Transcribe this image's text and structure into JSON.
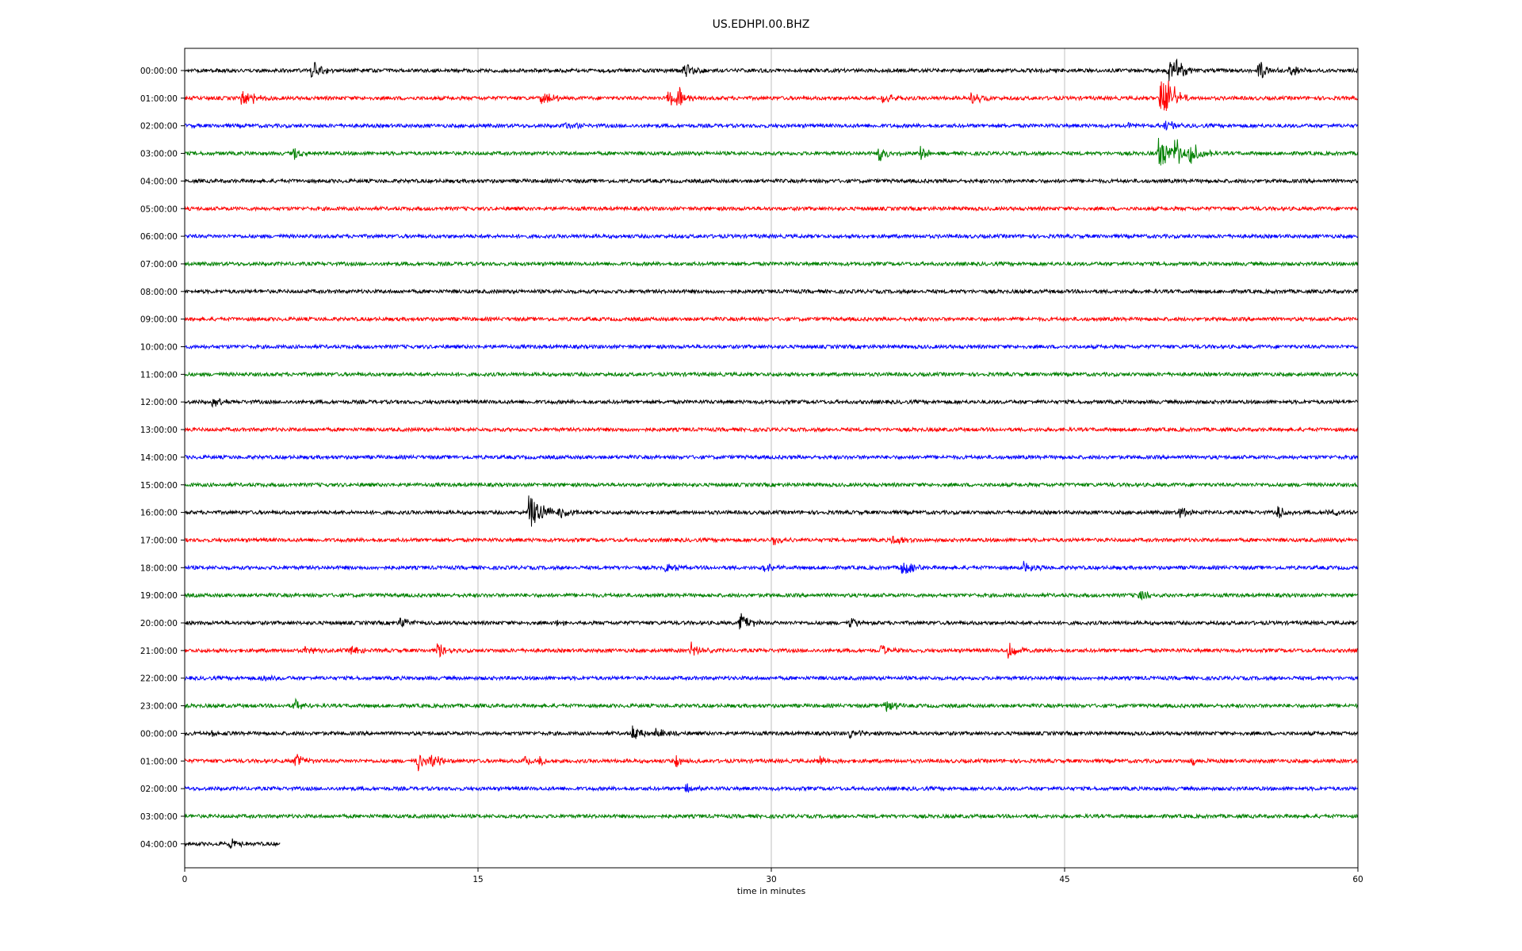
{
  "chart_data": {
    "type": "line",
    "title": "US.EDHPI.00.BHZ",
    "xlabel": "time in minutes",
    "ylabel": "",
    "xlim": [
      0,
      60
    ],
    "x_ticks": [
      0,
      15,
      30,
      45,
      60
    ],
    "x_tick_labels": [
      "0",
      "15",
      "30",
      "45",
      "60"
    ],
    "grid": "vertical",
    "line_colors": [
      "#000000",
      "#ff0000",
      "#0000ff",
      "#008000"
    ],
    "traces": [
      {
        "label": "00:00:00",
        "start_min": 0,
        "end_min": 60,
        "events": [
          [
            6.5,
            1.0
          ],
          [
            25.5,
            0.7
          ],
          [
            50.3,
            0.9
          ],
          [
            50.6,
            1.2
          ],
          [
            54.9,
            1.0
          ],
          [
            56.5,
            0.5
          ]
        ]
      },
      {
        "label": "01:00:00",
        "start_min": 0,
        "end_min": 60,
        "events": [
          [
            2.9,
            0.6
          ],
          [
            3.5,
            0.5
          ],
          [
            18.2,
            0.8
          ],
          [
            24.7,
            0.8
          ],
          [
            25.2,
            0.9
          ],
          [
            35.6,
            0.6
          ],
          [
            40.2,
            0.7
          ],
          [
            49.9,
            2.0
          ],
          [
            50.3,
            1.4
          ]
        ]
      },
      {
        "label": "02:00:00",
        "start_min": 0,
        "end_min": 60,
        "events": [
          [
            19.5,
            0.4
          ],
          [
            48.2,
            0.3
          ],
          [
            50.1,
            0.6
          ]
        ]
      },
      {
        "label": "03:00:00",
        "start_min": 0,
        "end_min": 60,
        "events": [
          [
            5.6,
            0.5
          ],
          [
            35.5,
            0.7
          ],
          [
            37.6,
            0.5
          ],
          [
            49.8,
            1.5
          ],
          [
            50.6,
            1.3
          ],
          [
            51.4,
            1.3
          ]
        ]
      },
      {
        "label": "04:00:00",
        "start_min": 0,
        "end_min": 60,
        "events": []
      },
      {
        "label": "05:00:00",
        "start_min": 0,
        "end_min": 60,
        "events": []
      },
      {
        "label": "06:00:00",
        "start_min": 0,
        "end_min": 60,
        "events": []
      },
      {
        "label": "07:00:00",
        "start_min": 0,
        "end_min": 60,
        "events": []
      },
      {
        "label": "08:00:00",
        "start_min": 0,
        "end_min": 60,
        "events": []
      },
      {
        "label": "09:00:00",
        "start_min": 0,
        "end_min": 60,
        "events": []
      },
      {
        "label": "10:00:00",
        "start_min": 0,
        "end_min": 60,
        "events": []
      },
      {
        "label": "11:00:00",
        "start_min": 0,
        "end_min": 60,
        "events": []
      },
      {
        "label": "12:00:00",
        "start_min": 0,
        "end_min": 60,
        "events": [
          [
            1.4,
            0.4
          ]
        ]
      },
      {
        "label": "13:00:00",
        "start_min": 0,
        "end_min": 60,
        "events": []
      },
      {
        "label": "14:00:00",
        "start_min": 0,
        "end_min": 60,
        "events": []
      },
      {
        "label": "15:00:00",
        "start_min": 0,
        "end_min": 60,
        "events": []
      },
      {
        "label": "16:00:00",
        "start_min": 0,
        "end_min": 60,
        "events": [
          [
            17.6,
            1.8
          ],
          [
            18.2,
            0.6
          ],
          [
            19.1,
            0.5
          ],
          [
            50.9,
            0.5
          ],
          [
            55.9,
            0.5
          ],
          [
            58.4,
            0.5
          ]
        ]
      },
      {
        "label": "17:00:00",
        "start_min": 0,
        "end_min": 60,
        "events": [
          [
            30.1,
            0.4
          ],
          [
            36.2,
            0.5
          ]
        ]
      },
      {
        "label": "18:00:00",
        "start_min": 0,
        "end_min": 60,
        "events": [
          [
            24.6,
            0.5
          ],
          [
            29.6,
            0.4
          ],
          [
            36.7,
            0.8
          ],
          [
            42.9,
            0.5
          ]
        ]
      },
      {
        "label": "19:00:00",
        "start_min": 0,
        "end_min": 60,
        "events": [
          [
            48.8,
            0.5
          ]
        ]
      },
      {
        "label": "20:00:00",
        "start_min": 0,
        "end_min": 60,
        "events": [
          [
            11.0,
            0.4
          ],
          [
            19.0,
            0.4
          ],
          [
            28.4,
            0.9
          ],
          [
            34.0,
            0.5
          ]
        ]
      },
      {
        "label": "21:00:00",
        "start_min": 0,
        "end_min": 60,
        "events": [
          [
            6.1,
            0.4
          ],
          [
            8.5,
            0.4
          ],
          [
            12.9,
            0.6
          ],
          [
            25.9,
            0.7
          ],
          [
            35.6,
            0.4
          ],
          [
            42.1,
            0.7
          ]
        ]
      },
      {
        "label": "22:00:00",
        "start_min": 0,
        "end_min": 60,
        "events": [
          [
            4.0,
            0.3
          ]
        ]
      },
      {
        "label": "23:00:00",
        "start_min": 0,
        "end_min": 60,
        "events": [
          [
            5.6,
            0.6
          ],
          [
            35.8,
            0.7
          ]
        ]
      },
      {
        "label": "00:00:00",
        "start_min": 0,
        "end_min": 60,
        "events": [
          [
            1.2,
            0.3
          ],
          [
            22.9,
            0.6
          ],
          [
            24.1,
            0.5
          ],
          [
            34.0,
            0.5
          ]
        ]
      },
      {
        "label": "01:00:00",
        "start_min": 0,
        "end_min": 60,
        "events": [
          [
            5.6,
            0.7
          ],
          [
            11.9,
            0.8
          ],
          [
            12.6,
            0.6
          ],
          [
            17.3,
            0.6
          ],
          [
            18.1,
            0.5
          ],
          [
            25.1,
            0.5
          ],
          [
            32.5,
            0.4
          ],
          [
            51.5,
            0.4
          ]
        ]
      },
      {
        "label": "02:00:00",
        "start_min": 0,
        "end_min": 60,
        "events": [
          [
            25.6,
            0.5
          ]
        ]
      },
      {
        "label": "03:00:00",
        "start_min": 0,
        "end_min": 60,
        "events": []
      },
      {
        "label": "04:00:00",
        "start_min": 0,
        "end_min": 4.9,
        "events": [
          [
            2.3,
            0.4
          ]
        ]
      }
    ]
  }
}
